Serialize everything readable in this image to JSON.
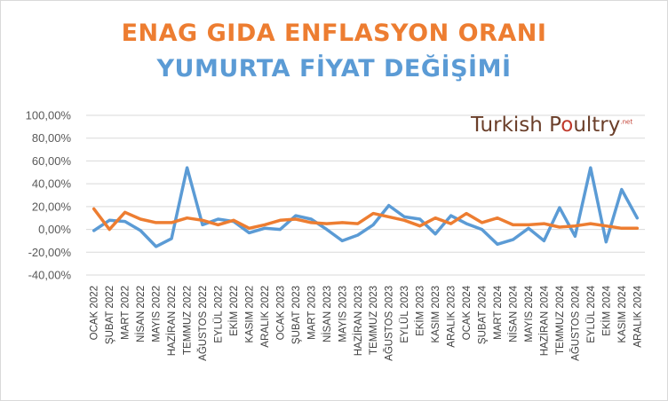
{
  "colors": {
    "title1": "#ed7d31",
    "title2": "#5b9bd5",
    "series_food": "#ed7d31",
    "series_egg": "#5b9bd5",
    "grid": "#d9d9d9"
  },
  "logo": {
    "part1": "Turkish P",
    "ring": "o",
    "part2": "ultry",
    "sup": ".net"
  },
  "chart_data": {
    "type": "line",
    "title": "ENAG GIDA ENFLASYON ORANI",
    "subtitle": "YUMURTA FİYAT DEĞİŞİMİ",
    "ylim": [
      -40,
      100
    ],
    "ytick_labels": [
      "100,00%",
      "80,00%",
      "60,00%",
      "40,00%",
      "20,00%",
      "0,00%",
      "-20,00%",
      "-40,00%"
    ],
    "ytick_values": [
      100,
      80,
      60,
      40,
      20,
      0,
      -20,
      -40
    ],
    "grid": true,
    "legend": "none",
    "categories": [
      "OCAK 2022",
      "ŞUBAT 2022",
      "MART 2022",
      "NİSAN 2022",
      "MAYIS 2022",
      "HAZİRAN 2022",
      "TEMMUZ 2022",
      "AĞUSTOS 2022",
      "EYLÜL 2022",
      "EKİM 2022",
      "KASIM 2022",
      "ARALIK 2022",
      "OCAK 2023",
      "ŞUBAT 2023",
      "MART 2023",
      "NİSAN 2023",
      "MAYIS 2023",
      "HAZİRAN 2023",
      "TEMMUZ 2023",
      "AĞUSTOS 2023",
      "EYLÜL 2023",
      "EKİM 2023",
      "KASIM 2023",
      "ARALIK 2023",
      "OCAK 2024",
      "ŞUBAT 2024",
      "MART 2024",
      "NİSAN 2024",
      "MAYIS 2024",
      "HAZİRAN 2024",
      "TEMMUZ 2024",
      "AĞUSTOS 2024",
      "EYLÜL 2024",
      "EKİM 2024",
      "KASIM 2024",
      "ARALIK 2024"
    ],
    "series": [
      {
        "values": [
          18,
          0,
          15,
          9,
          6,
          6,
          10,
          8,
          4,
          8,
          1,
          4,
          8,
          9,
          6,
          5,
          6,
          5,
          14,
          11,
          8,
          3,
          10,
          5,
          14,
          6,
          10,
          4,
          4,
          5,
          2,
          3,
          5,
          3,
          1,
          1
        ]
      },
      {
        "values": [
          -1,
          8,
          7,
          -1,
          -15,
          -8,
          54,
          4,
          9,
          7,
          -3,
          1,
          0,
          12,
          9,
          0,
          -10,
          -5,
          4,
          21,
          11,
          9,
          -4,
          12,
          5,
          0,
          -13,
          -9,
          1,
          -10,
          19,
          -6,
          54,
          -11,
          35,
          10
        ]
      }
    ]
  }
}
